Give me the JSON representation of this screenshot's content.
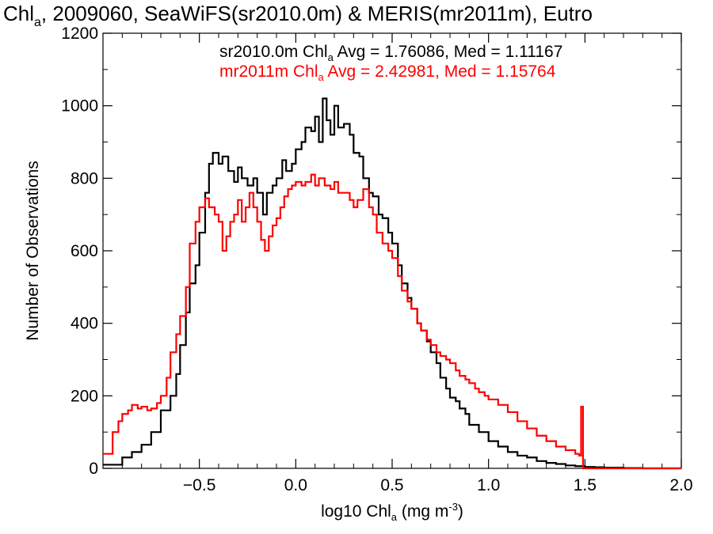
{
  "chart_data": {
    "type": "histogram",
    "title": {
      "prefix": "Chl",
      "sub": "a",
      "rest": ", 2009060, SeaWiFS(sr2010.0m) & MERIS(mr2011m), Eutro"
    },
    "xlabel": {
      "prefix": "log10 Chl",
      "sub": "a",
      "rest": " (mg m",
      "sup": "-3",
      "close": ")"
    },
    "ylabel": "Number of Observations",
    "xlim": [
      -1.0,
      2.0
    ],
    "ylim": [
      0,
      1200
    ],
    "x_ticks": [
      -0.5,
      0.0,
      0.5,
      1.0,
      1.5,
      2.0
    ],
    "x_tick_labels": [
      "−0.5",
      "0.0",
      "0.5",
      "1.0",
      "1.5",
      "2.0"
    ],
    "y_ticks": [
      0,
      200,
      400,
      600,
      800,
      1000,
      1200
    ],
    "y_tick_labels": [
      "0",
      "200",
      "400",
      "600",
      "800",
      "1000",
      "1200"
    ],
    "grid": false,
    "legend_position": "top",
    "series": [
      {
        "name": "sr2010.0m",
        "color": "#000000",
        "stats_text": {
          "prefix": "sr2010.0m Chl",
          "sub": "a",
          "rest": " Avg = 1.76086, Med = 1.11167"
        },
        "avg": 1.76086,
        "median": 1.11167,
        "points": [
          [
            -1.0,
            10
          ],
          [
            -0.9,
            30
          ],
          [
            -0.85,
            45
          ],
          [
            -0.8,
            65
          ],
          [
            -0.75,
            100
          ],
          [
            -0.7,
            160
          ],
          [
            -0.65,
            200
          ],
          [
            -0.62,
            260
          ],
          [
            -0.6,
            340
          ],
          [
            -0.57,
            430
          ],
          [
            -0.55,
            510
          ],
          [
            -0.52,
            560
          ],
          [
            -0.5,
            650
          ],
          [
            -0.47,
            760
          ],
          [
            -0.45,
            840
          ],
          [
            -0.43,
            870
          ],
          [
            -0.4,
            840
          ],
          [
            -0.38,
            860
          ],
          [
            -0.35,
            820
          ],
          [
            -0.32,
            790
          ],
          [
            -0.3,
            830
          ],
          [
            -0.28,
            800
          ],
          [
            -0.25,
            780
          ],
          [
            -0.22,
            800
          ],
          [
            -0.2,
            760
          ],
          [
            -0.17,
            700
          ],
          [
            -0.15,
            760
          ],
          [
            -0.12,
            780
          ],
          [
            -0.1,
            800
          ],
          [
            -0.07,
            850
          ],
          [
            -0.05,
            820
          ],
          [
            -0.02,
            840
          ],
          [
            0.0,
            880
          ],
          [
            0.03,
            900
          ],
          [
            0.05,
            940
          ],
          [
            0.08,
            930
          ],
          [
            0.1,
            970
          ],
          [
            0.12,
            900
          ],
          [
            0.14,
            1020
          ],
          [
            0.16,
            960
          ],
          [
            0.18,
            920
          ],
          [
            0.2,
            1000
          ],
          [
            0.22,
            940
          ],
          [
            0.25,
            950
          ],
          [
            0.28,
            920
          ],
          [
            0.3,
            870
          ],
          [
            0.33,
            860
          ],
          [
            0.35,
            800
          ],
          [
            0.38,
            760
          ],
          [
            0.4,
            750
          ],
          [
            0.43,
            700
          ],
          [
            0.45,
            690
          ],
          [
            0.48,
            650
          ],
          [
            0.5,
            620
          ],
          [
            0.53,
            560
          ],
          [
            0.55,
            510
          ],
          [
            0.58,
            470
          ],
          [
            0.6,
            440
          ],
          [
            0.63,
            400
          ],
          [
            0.65,
            380
          ],
          [
            0.68,
            350
          ],
          [
            0.7,
            320
          ],
          [
            0.73,
            290
          ],
          [
            0.75,
            250
          ],
          [
            0.78,
            220
          ],
          [
            0.8,
            195
          ],
          [
            0.83,
            185
          ],
          [
            0.85,
            165
          ],
          [
            0.88,
            150
          ],
          [
            0.9,
            120
          ],
          [
            0.95,
            100
          ],
          [
            1.0,
            75
          ],
          [
            1.05,
            60
          ],
          [
            1.1,
            45
          ],
          [
            1.15,
            35
          ],
          [
            1.2,
            30
          ],
          [
            1.25,
            20
          ],
          [
            1.3,
            15
          ],
          [
            1.35,
            12
          ],
          [
            1.4,
            8
          ],
          [
            1.45,
            6
          ],
          [
            1.5,
            4
          ],
          [
            1.55,
            3
          ],
          [
            1.6,
            2
          ],
          [
            1.7,
            1
          ],
          [
            1.8,
            0
          ],
          [
            2.0,
            0
          ]
        ]
      },
      {
        "name": "mr2011m",
        "color": "#ff0000",
        "stats_text": {
          "prefix": "mr2011m Chl",
          "sub": "a",
          "rest": " Avg = 2.42981, Med = 1.15764"
        },
        "avg": 2.42981,
        "median": 1.15764,
        "points": [
          [
            -1.0,
            40
          ],
          [
            -0.95,
            100
          ],
          [
            -0.92,
            130
          ],
          [
            -0.9,
            150
          ],
          [
            -0.87,
            160
          ],
          [
            -0.85,
            175
          ],
          [
            -0.82,
            165
          ],
          [
            -0.8,
            170
          ],
          [
            -0.77,
            160
          ],
          [
            -0.75,
            165
          ],
          [
            -0.72,
            180
          ],
          [
            -0.7,
            200
          ],
          [
            -0.67,
            250
          ],
          [
            -0.65,
            320
          ],
          [
            -0.62,
            370
          ],
          [
            -0.6,
            420
          ],
          [
            -0.57,
            500
          ],
          [
            -0.55,
            620
          ],
          [
            -0.52,
            680
          ],
          [
            -0.5,
            720
          ],
          [
            -0.47,
            745
          ],
          [
            -0.45,
            720
          ],
          [
            -0.42,
            700
          ],
          [
            -0.4,
            680
          ],
          [
            -0.38,
            600
          ],
          [
            -0.36,
            640
          ],
          [
            -0.34,
            680
          ],
          [
            -0.32,
            700
          ],
          [
            -0.3,
            740
          ],
          [
            -0.28,
            680
          ],
          [
            -0.26,
            720
          ],
          [
            -0.24,
            760
          ],
          [
            -0.22,
            720
          ],
          [
            -0.2,
            680
          ],
          [
            -0.18,
            630
          ],
          [
            -0.16,
            600
          ],
          [
            -0.14,
            640
          ],
          [
            -0.12,
            670
          ],
          [
            -0.1,
            690
          ],
          [
            -0.08,
            720
          ],
          [
            -0.06,
            750
          ],
          [
            -0.04,
            770
          ],
          [
            -0.02,
            780
          ],
          [
            0.0,
            790
          ],
          [
            0.03,
            780
          ],
          [
            0.05,
            790
          ],
          [
            0.08,
            810
          ],
          [
            0.1,
            780
          ],
          [
            0.12,
            800
          ],
          [
            0.15,
            780
          ],
          [
            0.18,
            770
          ],
          [
            0.2,
            790
          ],
          [
            0.22,
            760
          ],
          [
            0.25,
            760
          ],
          [
            0.28,
            740
          ],
          [
            0.3,
            720
          ],
          [
            0.32,
            740
          ],
          [
            0.35,
            770
          ],
          [
            0.38,
            720
          ],
          [
            0.4,
            700
          ],
          [
            0.42,
            650
          ],
          [
            0.45,
            620
          ],
          [
            0.48,
            600
          ],
          [
            0.5,
            580
          ],
          [
            0.53,
            530
          ],
          [
            0.55,
            490
          ],
          [
            0.58,
            460
          ],
          [
            0.6,
            440
          ],
          [
            0.63,
            400
          ],
          [
            0.65,
            380
          ],
          [
            0.68,
            355
          ],
          [
            0.7,
            340
          ],
          [
            0.73,
            320
          ],
          [
            0.75,
            310
          ],
          [
            0.78,
            300
          ],
          [
            0.8,
            290
          ],
          [
            0.83,
            270
          ],
          [
            0.85,
            255
          ],
          [
            0.88,
            245
          ],
          [
            0.9,
            235
          ],
          [
            0.93,
            220
          ],
          [
            0.95,
            210
          ],
          [
            0.98,
            200
          ],
          [
            1.0,
            190
          ],
          [
            1.05,
            175
          ],
          [
            1.1,
            155
          ],
          [
            1.15,
            130
          ],
          [
            1.2,
            110
          ],
          [
            1.25,
            90
          ],
          [
            1.3,
            75
          ],
          [
            1.35,
            60
          ],
          [
            1.4,
            50
          ],
          [
            1.45,
            40
          ],
          [
            1.47,
            35
          ],
          [
            1.48,
            170
          ],
          [
            1.49,
            0
          ],
          [
            1.5,
            0
          ],
          [
            2.0,
            0
          ]
        ]
      }
    ]
  }
}
